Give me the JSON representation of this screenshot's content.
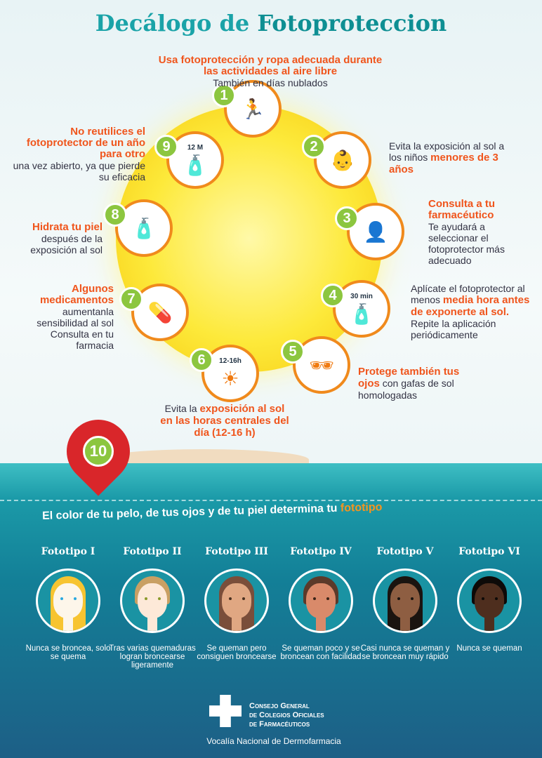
{
  "title": {
    "part1": "Decálogo de",
    "part2": "Fotoproteccion"
  },
  "items": [
    {
      "num": "1",
      "icon": "running-person-icon",
      "bold": "Usa fotoprotección y ropa adecuada durante las actividades al aire libre",
      "text": "También en días nublados"
    },
    {
      "num": "2",
      "icon": "baby-icon",
      "text": "Evita la exposición al sol a los niños",
      "bold": "menores de 3 años"
    },
    {
      "num": "3",
      "icon": "pharmacist-icon",
      "bold": "Consulta a tu farmacéutico",
      "text": "Te ayudará a seleccionar el fotoprotector más adecuado"
    },
    {
      "num": "4",
      "icon": "sunscreen-bottle-icon",
      "label": "30 min",
      "text": "Aplícate el fotoprotector al menos",
      "bold": "media hora antes de exponerte al sol.",
      "text2": "Repite la aplicación periódicamente"
    },
    {
      "num": "5",
      "icon": "sunglasses-icon",
      "bold": "Protege también tus ojos",
      "text": "con gafas de sol homologadas"
    },
    {
      "num": "6",
      "icon": "sun-icon",
      "label": "12-16h",
      "text": "Evita la",
      "bold": "exposición al sol en las horas centrales del día",
      "bold2": "(12-16 h)"
    },
    {
      "num": "7",
      "icon": "pills-icon",
      "bold": "Algunos medicamentos",
      "text": "aumentanla sensibilidad al sol Consulta en tu farmacia"
    },
    {
      "num": "8",
      "icon": "cream-tube-icon",
      "bold": "Hidrata tu piel",
      "text": "después de la exposición al sol"
    },
    {
      "num": "9",
      "icon": "sunscreen-jar-icon",
      "label": "12 M",
      "bold": "No reutilices el fotoprotector de un año para otro",
      "text": "una vez abierto, ya que pierde su eficacia"
    }
  ],
  "pin": {
    "num": "10"
  },
  "band": {
    "text": "El color de tu pelo, de tus ojos y de tu piel determina tu",
    "highlight": "fototipo"
  },
  "phototypes": [
    {
      "name": "Fototipo I",
      "desc": "Nunca se broncea, solo se quema",
      "skin": "#fdf6ea",
      "hair": "#f7c431",
      "eyes": "#29a8e0"
    },
    {
      "name": "Fototipo II",
      "desc": "Tras varias quemaduras logran broncearse ligeramente",
      "skin": "#fde9d8",
      "hair": "#c9a063",
      "eyes": "#8a9a2a"
    },
    {
      "name": "Fototipo III",
      "desc": "Se queman pero consiguen broncearse",
      "skin": "#e0a782",
      "hair": "#7a4e3a",
      "eyes": "#4a3020"
    },
    {
      "name": "Fototipo IV",
      "desc": "Se queman poco y se broncean con facilidad",
      "skin": "#d98a6a",
      "hair": "#5b3a2a",
      "eyes": "#3a2418"
    },
    {
      "name": "Fototipo V",
      "desc": "Casi nunca se queman y se broncean muy rápido",
      "skin": "#8e5e42",
      "hair": "#1a1410",
      "eyes": "#1a1410"
    },
    {
      "name": "Fototipo VI",
      "desc": "Nunca se queman",
      "skin": "#4e2e1e",
      "hair": "#0d0a08",
      "eyes": "#0d0a08"
    }
  ],
  "logo": {
    "line1": "Consejo General",
    "line2": "de Colegios Oficiales",
    "line3": "de Farmacéuticos",
    "subtitle": "Vocalía Nacional de Dermofarmacia"
  }
}
